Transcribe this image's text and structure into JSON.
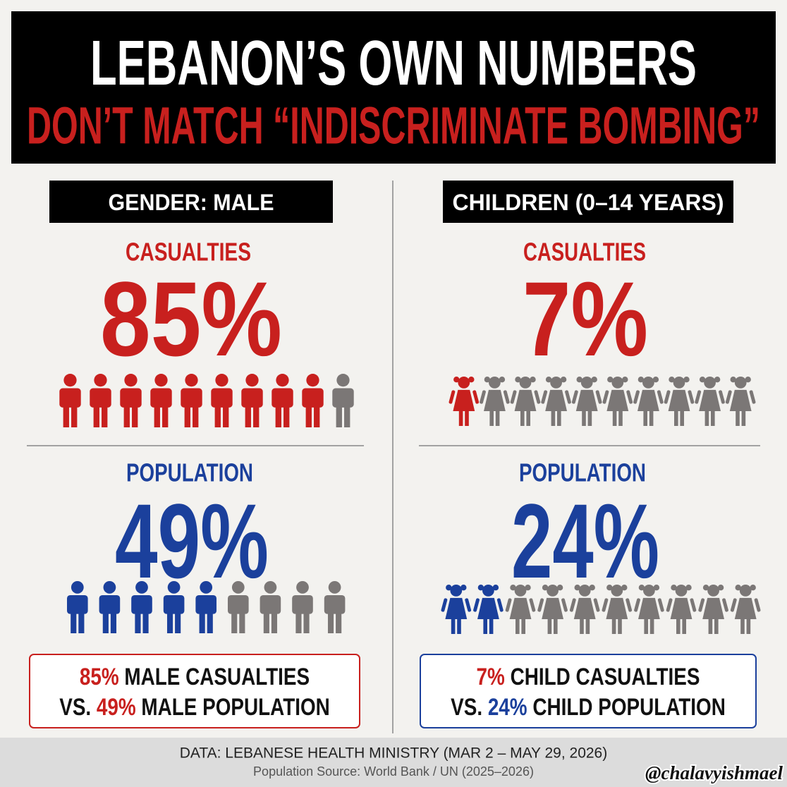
{
  "title": {
    "line1": "LEBANON’S OWN NUMBERS",
    "line2": "DON’T MATCH “INDISCRIMINATE BOMBING”"
  },
  "panels": [
    {
      "heading": "GENDER: MALE",
      "casualties": {
        "label": "CASUALTIES",
        "value": "85%",
        "icons": {
          "shape": "male",
          "filled": 9,
          "total": 10
        }
      },
      "population": {
        "label": "POPULATION",
        "value": "49%",
        "icons": {
          "shape": "male",
          "filled": 5,
          "total": 9
        }
      },
      "summary": {
        "highlight1": "85%",
        "text1": "MALE CASUALTIES",
        "prefix2": "VS.",
        "highlight2": "49%",
        "text2": "MALE POPULATION"
      }
    },
    {
      "heading": "CHILDREN (0–14 YEARS)",
      "casualties": {
        "label": "CASUALTIES",
        "value": "7%",
        "icons": {
          "shape": "girl",
          "filled": 1,
          "total": 10
        }
      },
      "population": {
        "label": "POPULATION",
        "value": "24%",
        "icons": {
          "shape": "girl",
          "filled": 2,
          "total": 10
        }
      },
      "summary": {
        "highlight1": "7%",
        "text1": "CHILD CASUALTIES",
        "prefix2": "VS.",
        "highlight2": "24%",
        "text2": "CHILD POPULATION"
      }
    }
  ],
  "colors": {
    "casualties": "#c8201e",
    "population": "#1b409c",
    "neutral": "#7b7776"
  },
  "footer": {
    "source": "DATA: LEBANESE HEALTH MINISTRY (MAR 2 – MAY 29, 2026)",
    "population_source": "Population Source: World Bank / UN (2025–2026)",
    "handle": "@chalavyishmael"
  }
}
